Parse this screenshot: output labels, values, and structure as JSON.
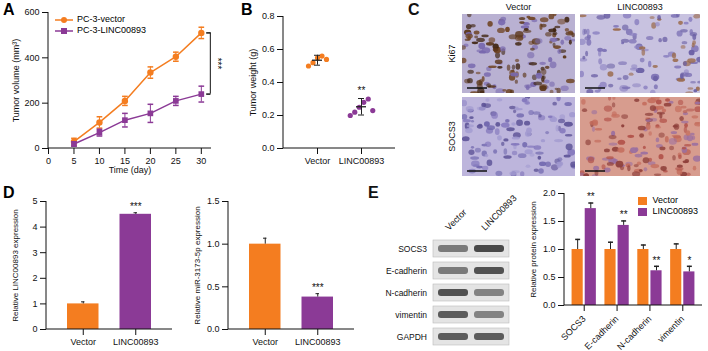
{
  "chart_data": [
    {
      "panel": "A",
      "type": "line",
      "xlabel": "Time (day)",
      "ylabel": "Tumor volume (mm³)",
      "x": [
        5,
        10,
        15,
        20,
        25,
        30
      ],
      "series": [
        {
          "name": "PC-3-vector",
          "color": "#f47d20",
          "marker": "circle",
          "values": [
            30,
            115,
            210,
            335,
            405,
            510
          ],
          "errors": [
            15,
            25,
            20,
            25,
            20,
            25
          ]
        },
        {
          "name": "PC-3-LINC00893",
          "color": "#8b3a96",
          "marker": "square",
          "values": [
            20,
            70,
            125,
            155,
            210,
            240
          ],
          "errors": [
            10,
            15,
            30,
            40,
            20,
            35
          ]
        }
      ],
      "xlim": [
        0,
        32
      ],
      "xticks": [
        0,
        5,
        10,
        15,
        20,
        25,
        30
      ],
      "ylim": [
        0,
        600
      ],
      "yticks": [
        0,
        200,
        400,
        600
      ],
      "legend": "top-left",
      "significance": "***"
    },
    {
      "panel": "B",
      "type": "scatter",
      "ylabel": "Tumor weight (g)",
      "categories": [
        "Vector",
        "LINC00893"
      ],
      "points": [
        [
          0.5,
          0.52,
          0.55,
          0.56,
          0.54
        ],
        [
          0.2,
          0.22,
          0.25,
          0.28,
          0.3,
          0.23
        ]
      ],
      "mean": [
        0.535,
        0.253
      ],
      "sd": [
        0.03,
        0.05
      ],
      "colors": [
        "#f47d20",
        "#8b3a96"
      ],
      "ylim": [
        0,
        0.8
      ],
      "yticks": [
        {
          "value": 0,
          "label": "0.0"
        },
        {
          "value": 0.2,
          "label": "0.2"
        },
        {
          "value": 0.4,
          "label": "0.4"
        },
        {
          "value": 0.6,
          "label": "0.6"
        },
        {
          "value": 0.8,
          "label": "0.8"
        }
      ],
      "significance": [
        null,
        "**"
      ]
    },
    {
      "panel": "D",
      "type": "bar",
      "ylabel": "Relative LINC00893 expression",
      "categories": [
        "Vector",
        "LINC00893"
      ],
      "values": [
        1.0,
        4.5
      ],
      "errors": [
        0.08,
        0.06
      ],
      "colors": [
        "#f47d20",
        "#8b3a96"
      ],
      "ylim": [
        0,
        5
      ],
      "yticks": [
        0,
        1,
        2,
        3,
        4,
        5
      ],
      "significance": [
        null,
        "***"
      ]
    },
    {
      "type": "bar",
      "ylabel": "Relative miR-3173-5p expression",
      "categories": [
        "Vector",
        "LINC00893"
      ],
      "values": [
        1.0,
        0.38
      ],
      "errors": [
        0.07,
        0.04
      ],
      "colors": [
        "#f47d20",
        "#8b3a96"
      ],
      "ylim": [
        0,
        1.5
      ],
      "yticks": [
        {
          "value": 0,
          "label": "0.0"
        },
        {
          "value": 0.5,
          "label": "0.5"
        },
        {
          "value": 1,
          "label": "1.0"
        },
        {
          "value": 1.5,
          "label": "1.5"
        }
      ],
      "significance": [
        null,
        "***"
      ]
    },
    {
      "type": "bar",
      "ylabel": "Relative protein expression",
      "categories": [
        "SOCS3",
        "E-cadherin",
        "N-cadherin",
        "vimentin"
      ],
      "series": [
        {
          "name": "Vector",
          "color": "#f47d20",
          "values": [
            1.0,
            1.0,
            1.0,
            1.0
          ],
          "errors": [
            0.18,
            0.13,
            0.08,
            0.1
          ]
        },
        {
          "name": "LINC00893",
          "color": "#8b3a96",
          "values": [
            1.73,
            1.43,
            0.62,
            0.6
          ],
          "errors": [
            0.1,
            0.08,
            0.08,
            0.1
          ],
          "significance": [
            "**",
            "**",
            "**",
            "*"
          ]
        }
      ],
      "ylim": [
        0,
        2.0
      ],
      "yticks": [
        {
          "value": 0,
          "label": "0.0"
        },
        {
          "value": 0.5,
          "label": "0.5"
        },
        {
          "value": 1,
          "label": "1.0"
        },
        {
          "value": 1.5,
          "label": "1.5"
        },
        {
          "value": 2,
          "label": "2.0"
        }
      ],
      "legend": "top-right"
    }
  ],
  "panel_c": {
    "panel": "C",
    "columns": [
      "Vector",
      "LINC00893"
    ],
    "rows": [
      "Ki67",
      "SOCS3"
    ]
  },
  "panel_e_blot": {
    "panel": "E",
    "columns": [
      "Vector",
      "LINC00893"
    ],
    "rows": [
      "SOCS3",
      "E-cadherin",
      "N-cadherin",
      "vimentin",
      "GAPDH"
    ]
  }
}
